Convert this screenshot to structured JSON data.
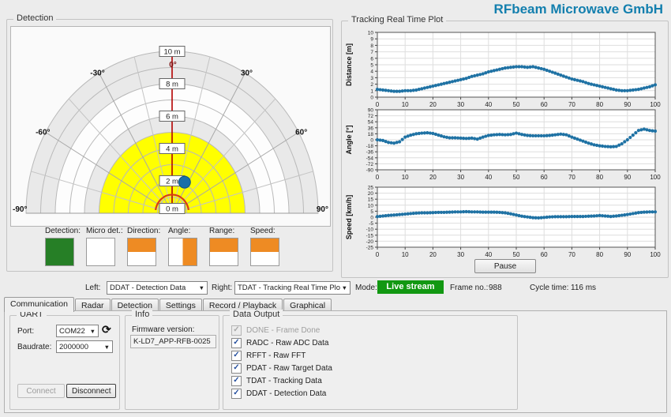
{
  "app": {
    "brand": "RFbeam Microwave GmbH",
    "brand_color": "#137fae"
  },
  "icons": {
    "checkmark": "✓",
    "dropdown_arrow": "▼",
    "refresh": "⟳"
  },
  "detection": {
    "title": "Detection",
    "max_range_m": 10,
    "zone_fill_m": 5,
    "rings_m": [
      10,
      8,
      6,
      4,
      2,
      0
    ],
    "ring_labels": [
      "10 m",
      "8 m",
      "6 m",
      "4 m",
      "2 m",
      "0 m"
    ],
    "angle_ticks": [
      {
        "deg": 0,
        "label": "0°"
      },
      {
        "deg": 30,
        "label": "30°"
      },
      {
        "deg": -30,
        "label": "-30°"
      },
      {
        "deg": 60,
        "label": "60°"
      },
      {
        "deg": -60,
        "label": "-60°"
      },
      {
        "deg": 90,
        "label": "90°"
      },
      {
        "deg": -90,
        "label": "-90°"
      }
    ],
    "target": {
      "range_m": 2.1,
      "angle_deg": 24
    },
    "colors": {
      "zone": "#ffff00",
      "band": "#e9e9e9",
      "target": "#1b6fa8",
      "axis_red": "#b30000",
      "arc_red": "#d8391b"
    },
    "legend": [
      {
        "label": "Detection:",
        "style": "green"
      },
      {
        "label": "Micro det.:",
        "style": "white"
      },
      {
        "label": "Direction:",
        "style": "top-orange"
      },
      {
        "label": "Angle:",
        "style": "right-orange"
      },
      {
        "label": "Range:",
        "style": "top-orange"
      },
      {
        "label": "Speed:",
        "style": "top-orange"
      }
    ]
  },
  "tracking": {
    "title": "Tracking Real Time Plot",
    "pause_label": "Pause"
  },
  "chart_data": [
    {
      "type": "scatter",
      "title": "",
      "ylabel": "Distance [m]",
      "xlabel": "",
      "ylim": [
        0,
        10
      ],
      "xlim": [
        0,
        100
      ],
      "yticks": [
        10,
        9,
        8,
        7,
        6,
        5,
        4,
        3,
        2,
        1,
        0
      ],
      "xticks": [
        0,
        10,
        20,
        30,
        40,
        50,
        60,
        70,
        80,
        90,
        100
      ],
      "grid": true,
      "point_color": "#1f72a4",
      "x_step": 2,
      "values": [
        1.2,
        1.1,
        1.0,
        0.9,
        0.9,
        1.0,
        1.0,
        1.1,
        1.3,
        1.5,
        1.7,
        1.9,
        2.1,
        2.3,
        2.5,
        2.7,
        2.9,
        3.2,
        3.4,
        3.6,
        3.9,
        4.1,
        4.3,
        4.5,
        4.6,
        4.7,
        4.7,
        4.6,
        4.7,
        4.5,
        4.3,
        4.0,
        3.7,
        3.4,
        3.1,
        2.8,
        2.6,
        2.4,
        2.1,
        1.9,
        1.7,
        1.5,
        1.3,
        1.1,
        1.0,
        1.0,
        1.1,
        1.2,
        1.4,
        1.6,
        1.9
      ]
    },
    {
      "type": "scatter",
      "title": "",
      "ylabel": "Angle [°]",
      "xlabel": "",
      "ylim": [
        -90,
        90
      ],
      "xlim": [
        0,
        100
      ],
      "yticks": [
        90,
        72,
        54,
        36,
        18,
        0,
        -18,
        -36,
        -54,
        -72,
        -90
      ],
      "xticks": [
        0,
        10,
        20,
        30,
        40,
        50,
        60,
        70,
        80,
        90,
        100
      ],
      "grid": true,
      "point_color": "#1f72a4",
      "x_step": 2,
      "values": [
        0,
        -2,
        -8,
        -10,
        -6,
        8,
        14,
        18,
        20,
        21,
        19,
        14,
        9,
        6,
        6,
        5,
        4,
        5,
        2,
        8,
        13,
        15,
        16,
        15,
        16,
        20,
        16,
        13,
        12,
        12,
        12,
        13,
        15,
        17,
        15,
        8,
        2,
        -4,
        -10,
        -15,
        -18,
        -20,
        -21,
        -20,
        -12,
        0,
        14,
        28,
        32,
        28,
        26
      ]
    },
    {
      "type": "scatter",
      "title": "",
      "ylabel": "Speed [km/h]",
      "xlabel": "",
      "ylim": [
        -25,
        25
      ],
      "xlim": [
        0,
        100
      ],
      "yticks": [
        25,
        20,
        15,
        10,
        5,
        0,
        -5,
        -10,
        -15,
        -20,
        -25
      ],
      "xticks": [
        0,
        10,
        20,
        30,
        40,
        50,
        60,
        70,
        80,
        90,
        100
      ],
      "grid": true,
      "point_color": "#1f72a4",
      "x_step": 2,
      "values": [
        0.5,
        1.0,
        1.5,
        1.8,
        2.2,
        2.6,
        3.0,
        3.4,
        3.6,
        3.6,
        3.8,
        4.0,
        4.0,
        4.2,
        4.4,
        4.4,
        4.6,
        4.4,
        4.4,
        4.2,
        4.2,
        4.2,
        4.0,
        3.6,
        2.8,
        1.8,
        0.8,
        0.2,
        -0.4,
        -0.6,
        -0.2,
        0.2,
        0.4,
        0.4,
        0.4,
        0.6,
        0.6,
        0.6,
        0.8,
        1.0,
        1.4,
        1.0,
        0.6,
        1.0,
        1.6,
        2.2,
        3.0,
        3.8,
        4.2,
        4.4,
        4.4
      ]
    }
  ],
  "status_bar": {
    "left_label": "Left:",
    "left_value": "DDAT - Detection Data",
    "right_label": "Right:",
    "right_value": "TDAT - Tracking Real Time Plot",
    "mode_label": "Mode:",
    "mode_value": "Live stream",
    "mode_color": "#129812",
    "frame_label": "Frame no.:",
    "frame_value": "988",
    "cycle_label": "Cycle time:",
    "cycle_value": "116 ms"
  },
  "tabs": {
    "items": [
      {
        "label": "Communication",
        "active": true
      },
      {
        "label": "Radar",
        "active": false
      },
      {
        "label": "Detection",
        "active": false
      },
      {
        "label": "Settings",
        "active": false
      },
      {
        "label": "Record / Playback",
        "active": false
      },
      {
        "label": "Graphical",
        "active": false
      }
    ]
  },
  "panel": {
    "uart": {
      "title": "UART",
      "port_label": "Port:",
      "port_value": "COM22",
      "baudrate_label": "Baudrate:",
      "baudrate_value": "2000000",
      "connect_label": "Connect",
      "disconnect_label": "Disconnect"
    },
    "info": {
      "title": "Info",
      "firmware_label": "Firmware version:",
      "firmware_value": "K-LD7_APP-RFB-0025"
    },
    "data_output": {
      "title": "Data Output",
      "items": [
        {
          "label": "DONE - Frame Done",
          "checked": true,
          "enabled": false
        },
        {
          "label": "RADC - Raw ADC Data",
          "checked": true,
          "enabled": true
        },
        {
          "label": "RFFT - Raw FFT",
          "checked": true,
          "enabled": true
        },
        {
          "label": "PDAT - Raw Target Data",
          "checked": true,
          "enabled": true
        },
        {
          "label": "TDAT - Tracking Data",
          "checked": true,
          "enabled": true
        },
        {
          "label": "DDAT - Detection Data",
          "checked": true,
          "enabled": true
        }
      ]
    }
  }
}
